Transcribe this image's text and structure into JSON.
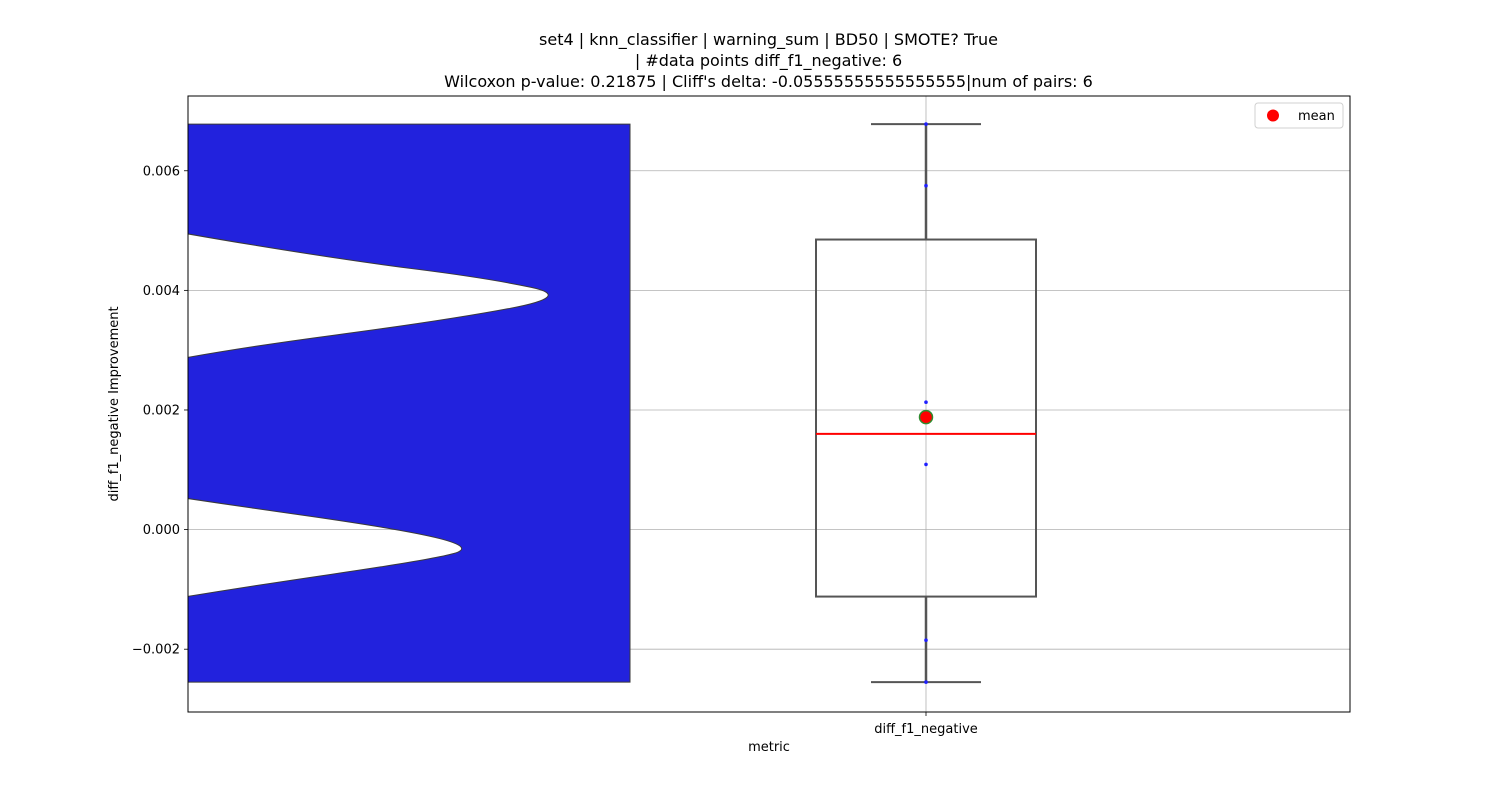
{
  "title_lines": [
    "set4 | knn_classifier | warning_sum | BD50 | SMOTE? True",
    "| #data points diff_f1_negative: 6",
    "Wilcoxon p-value: 0.21875 | Cliff's delta: -0.05555555555555555|num of pairs: 6"
  ],
  "legend": {
    "label": "mean",
    "color": "#ff0000"
  },
  "colors": {
    "violin": "#2222dd",
    "median": "#ff0000",
    "mean_fill": "#ff0000",
    "mean_edge": "#2e8b2e",
    "box_edge": "#555555",
    "points": "#1f1fff"
  },
  "chart_data": {
    "type": "box",
    "xlabel": "metric",
    "ylabel": "diff_f1_negative Improvement",
    "categories": [
      "diff_f1_negative"
    ],
    "ylim": [
      -0.00305,
      0.00725
    ],
    "yticks": [
      -0.002,
      0.0,
      0.002,
      0.004,
      0.006
    ],
    "ytick_labels": [
      "−0.002",
      "0.000",
      "0.002",
      "0.004",
      "0.006"
    ],
    "grid": true,
    "legend_position": "top-right",
    "box": {
      "whisker_low": -0.00255,
      "q1": -0.00112,
      "median": 0.0016,
      "q3": 0.00485,
      "whisker_high": 0.00678,
      "mean": 0.00188
    },
    "points": [
      0.00678,
      0.00575,
      0.00213,
      0.00109,
      -0.00185,
      -0.00255
    ],
    "violin": {
      "range": [
        -0.00255,
        0.00678
      ],
      "profile": [
        [
          0.00678,
          0.0
        ],
        [
          0.0063,
          0.0
        ],
        [
          0.006,
          0.0
        ],
        [
          0.0055,
          0.13
        ],
        [
          0.005,
          0.34
        ],
        [
          0.0045,
          0.6
        ],
        [
          0.0042,
          0.8
        ],
        [
          0.0039,
          0.92
        ],
        [
          0.0035,
          0.74
        ],
        [
          0.003,
          0.42
        ],
        [
          0.0025,
          0.21
        ],
        [
          0.002,
          0.06
        ],
        [
          0.0016,
          0.0
        ],
        [
          0.001,
          0.11
        ],
        [
          0.0005,
          0.38
        ],
        [
          0.0,
          0.68
        ],
        [
          -0.0003,
          0.78
        ],
        [
          -0.0005,
          0.72
        ],
        [
          -0.001,
          0.43
        ],
        [
          -0.0015,
          0.18
        ],
        [
          -0.00172,
          0.0
        ],
        [
          -0.00255,
          0.0
        ]
      ]
    }
  }
}
